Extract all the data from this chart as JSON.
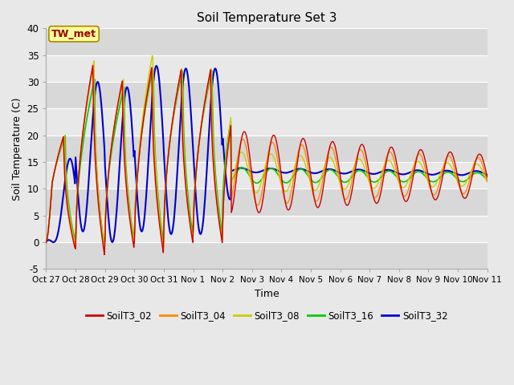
{
  "title": "Soil Temperature Set 3",
  "xlabel": "Time",
  "ylabel": "Soil Temperature (C)",
  "ylim": [
    -5,
    40
  ],
  "yticks": [
    -5,
    0,
    5,
    10,
    15,
    20,
    25,
    30,
    35,
    40
  ],
  "xtick_labels": [
    "Oct 27",
    "Oct 28",
    "Oct 29",
    "Oct 30",
    "Oct 31",
    "Nov 1",
    "Nov 2",
    "Nov 3",
    "Nov 4",
    "Nov 5",
    "Nov 6",
    "Nov 7",
    "Nov 8",
    "Nov 9",
    "Nov 10",
    "Nov 11"
  ],
  "bg_color": "#e8e8e8",
  "plot_bg_color": "#e8e8e8",
  "lines": {
    "SoilT3_02": {
      "color": "#cc0000",
      "lw": 1.0
    },
    "SoilT3_04": {
      "color": "#ff8800",
      "lw": 1.0
    },
    "SoilT3_08": {
      "color": "#cccc00",
      "lw": 1.0
    },
    "SoilT3_16": {
      "color": "#00cc00",
      "lw": 1.2
    },
    "SoilT3_32": {
      "color": "#0000cc",
      "lw": 1.5
    }
  },
  "annotation_text": "TW_met",
  "annotation_color": "#990000",
  "annotation_bg": "#ffff99",
  "annotation_border": "#aa8800",
  "grid_colors": [
    "#d0d0d0",
    "#e8e8e8"
  ]
}
